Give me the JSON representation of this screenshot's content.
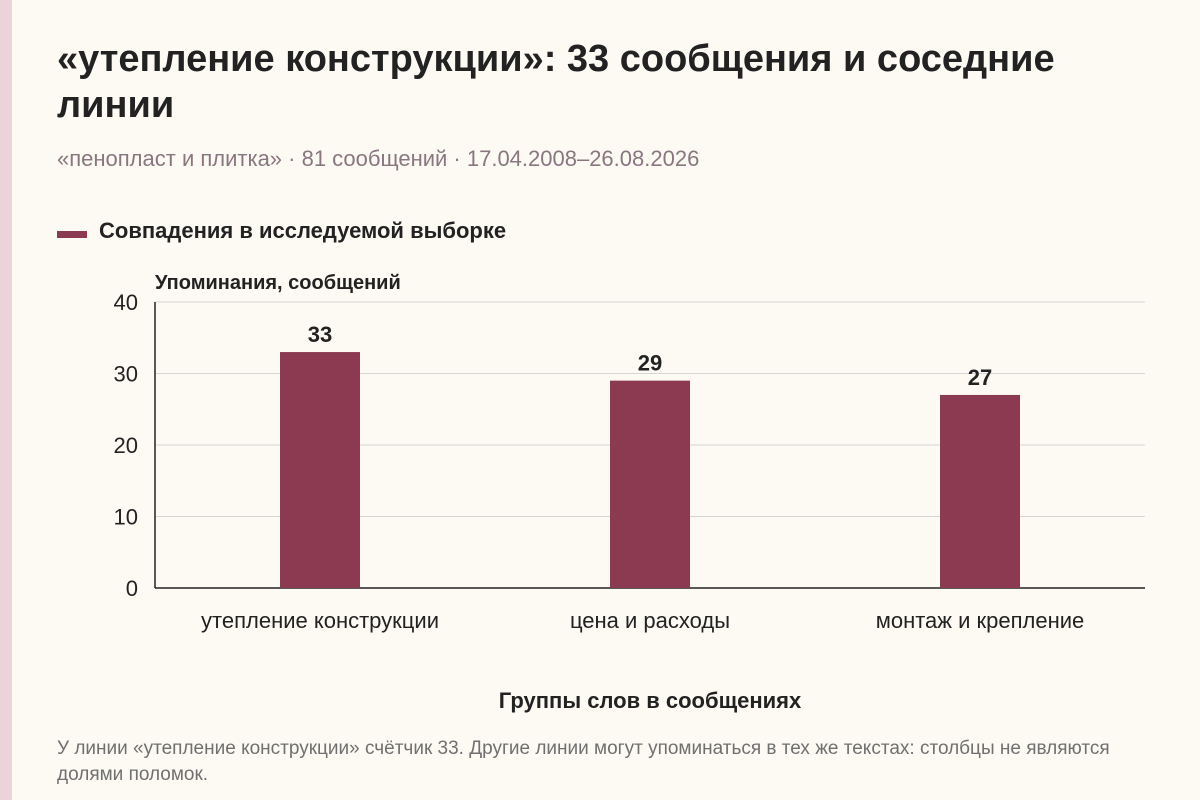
{
  "title": "«утепление конструкции»: 33 сообщения и соседние линии",
  "subtitle": "«пенопласт и плитка» · 81 сообщений · 17.04.2008–26.08.2026",
  "footnote": "У линии «утепление конструкции» счётчик 33. Другие линии могут упоминаться в тех же текстах: столбцы не являются долями поломок.",
  "colors": {
    "bar": "#8b3a52",
    "stripe": "#ecd3da",
    "background": "#fcfaf3"
  },
  "chart_data": {
    "type": "bar",
    "title": "«утепление конструкции»: 33 сообщения и соседние линии",
    "xlabel": "Группы слов в сообщениях",
    "ylabel": "Упоминания, сообщений",
    "categories": [
      "утепление конструкции",
      "цена и расходы",
      "монтаж и крепление"
    ],
    "series": [
      {
        "name": "Совпадения в исследуемой выборке",
        "values": [
          33,
          29,
          27
        ]
      }
    ],
    "ylim": [
      0,
      40
    ],
    "yticks": [
      0,
      10,
      20,
      30,
      40
    ],
    "grid": true,
    "legend": "top-left",
    "data_labels": true
  }
}
